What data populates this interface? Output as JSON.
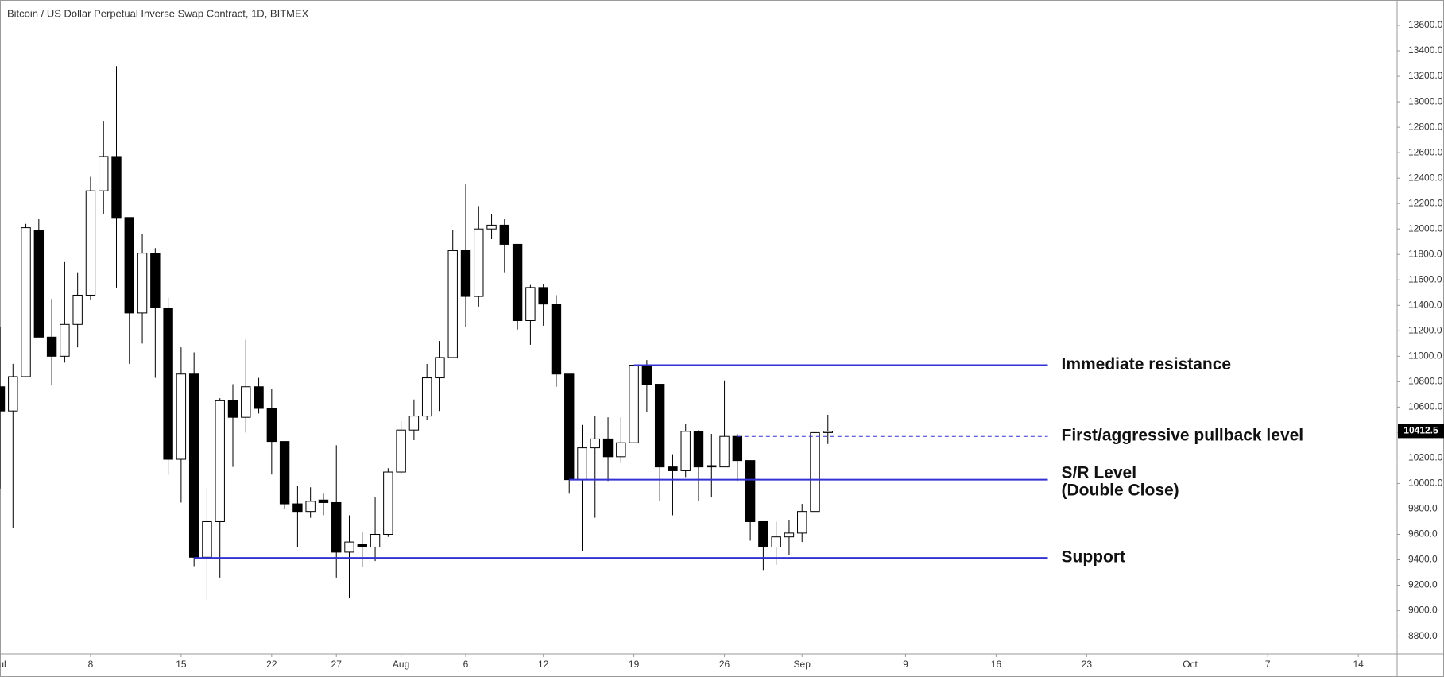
{
  "chart_data": {
    "type": "candlestick",
    "title": "Bitcoin / US Dollar Perpetual Inverse Swap Contract, 1D, BITMEX",
    "x": [
      "07-01",
      "07-02",
      "07-03",
      "07-04",
      "07-05",
      "07-06",
      "07-07",
      "07-08",
      "07-09",
      "07-10",
      "07-11",
      "07-12",
      "07-13",
      "07-14",
      "07-15",
      "07-16",
      "07-17",
      "07-18",
      "07-19",
      "07-20",
      "07-21",
      "07-22",
      "07-23",
      "07-24",
      "07-25",
      "07-26",
      "07-27",
      "07-28",
      "07-29",
      "07-30",
      "07-31",
      "08-01",
      "08-02",
      "08-03",
      "08-04",
      "08-05",
      "08-06",
      "08-07",
      "08-08",
      "08-09",
      "08-10",
      "08-11",
      "08-12",
      "08-13",
      "08-14",
      "08-15",
      "08-16",
      "08-17",
      "08-18",
      "08-19",
      "08-20",
      "08-21",
      "08-22",
      "08-23",
      "08-24",
      "08-25",
      "08-26",
      "08-27",
      "08-28",
      "08-29",
      "08-30",
      "08-31",
      "09-01",
      "09-02",
      "09-03"
    ],
    "open": [
      10760,
      10570,
      10840,
      11990,
      11150,
      11000,
      11250,
      11480,
      12300,
      12570,
      12090,
      11340,
      11810,
      11380,
      10190,
      10860,
      9420,
      9700,
      10650,
      10520,
      10760,
      10590,
      10330,
      9840,
      9780,
      9870,
      9850,
      9460,
      9520,
      9500,
      9600,
      10090,
      10420,
      10530,
      10830,
      10990,
      11830,
      11470,
      12000,
      12030,
      11880,
      11280,
      11540,
      11410,
      10860,
      10030,
      10280,
      10350,
      10210,
      10320,
      10930,
      10780,
      10130,
      10100,
      10410,
      10140,
      10130,
      10370,
      10180,
      9700,
      9500,
      9580,
      9610,
      9780,
      10400
    ],
    "high": [
      11230,
      10940,
      12040,
      12080,
      11450,
      11740,
      11660,
      12410,
      12850,
      13280,
      12090,
      11960,
      11850,
      11460,
      11070,
      11030,
      9970,
      10670,
      10780,
      11130,
      10830,
      10740,
      10330,
      9980,
      9970,
      9920,
      10300,
      9750,
      9620,
      9890,
      10120,
      10490,
      10660,
      10940,
      11120,
      11990,
      12350,
      12180,
      12120,
      12080,
      11880,
      11560,
      11570,
      11480,
      10860,
      10460,
      10530,
      10520,
      10520,
      10930,
      10970,
      10780,
      10230,
      10470,
      10420,
      10390,
      10810,
      10390,
      10180,
      9700,
      9700,
      9710,
      9840,
      10510,
      10540
    ],
    "low": [
      9960,
      9650,
      10840,
      11150,
      10770,
      10950,
      11070,
      11440,
      12120,
      11540,
      10940,
      11100,
      10830,
      10070,
      9850,
      9350,
      9080,
      9260,
      10130,
      10400,
      10550,
      10070,
      9800,
      9500,
      9730,
      9750,
      9260,
      9100,
      9340,
      9390,
      9580,
      10070,
      10340,
      10500,
      10570,
      10990,
      11230,
      11390,
      11920,
      11660,
      11210,
      11090,
      11240,
      10760,
      9920,
      9470,
      9730,
      10020,
      10160,
      10320,
      10560,
      9860,
      9750,
      10050,
      9860,
      9890,
      10130,
      10020,
      9550,
      9320,
      9360,
      9440,
      9540,
      9760,
      10310
    ],
    "close": [
      10570,
      10840,
      12010,
      11150,
      11000,
      11250,
      11480,
      12300,
      12570,
      12090,
      11340,
      11810,
      11380,
      10190,
      10860,
      9420,
      9700,
      10650,
      10520,
      10760,
      10590,
      10330,
      9840,
      9780,
      9860,
      9850,
      9460,
      9540,
      9500,
      9600,
      10090,
      10420,
      10530,
      10830,
      10990,
      11830,
      11470,
      12000,
      12030,
      11880,
      11280,
      11540,
      11410,
      10860,
      10030,
      10280,
      10350,
      10210,
      10320,
      10930,
      10780,
      10130,
      10100,
      10410,
      10130,
      10130,
      10370,
      10180,
      9700,
      9500,
      9580,
      9610,
      9780,
      10400,
      10410
    ],
    "up_color": "#ffffff",
    "down_color": "#000000",
    "ylim": [
      8660,
      13800
    ],
    "yticks": [
      {
        "value": 8800,
        "label": "8800.0"
      },
      {
        "value": 9000,
        "label": "9000.0"
      },
      {
        "value": 9200,
        "label": "9200.0"
      },
      {
        "value": 9400,
        "label": "9400.0"
      },
      {
        "value": 9600,
        "label": "9600.0"
      },
      {
        "value": 9800,
        "label": "9800.0"
      },
      {
        "value": 10000,
        "label": "10000.0"
      },
      {
        "value": 10200,
        "label": "10200.0"
      },
      {
        "value": 10400,
        "label": "10400.0"
      },
      {
        "value": 10600,
        "label": "10600.0"
      },
      {
        "value": 10800,
        "label": "10800.0"
      },
      {
        "value": 11000,
        "label": "11000.0"
      },
      {
        "value": 11200,
        "label": "11200.0"
      },
      {
        "value": 11400,
        "label": "11400.0"
      },
      {
        "value": 11600,
        "label": "11600.0"
      },
      {
        "value": 11800,
        "label": "11800.0"
      },
      {
        "value": 12000,
        "label": "12000.0"
      },
      {
        "value": 12200,
        "label": "12200.0"
      },
      {
        "value": 12400,
        "label": "12400.0"
      },
      {
        "value": 12600,
        "label": "12600.0"
      },
      {
        "value": 12800,
        "label": "12800.0"
      },
      {
        "value": 13000,
        "label": "13000.0"
      },
      {
        "value": 13200,
        "label": "13200.0"
      },
      {
        "value": 13400,
        "label": "13400.0"
      },
      {
        "value": 13600,
        "label": "13600.0"
      }
    ],
    "xlim": [
      "07-01",
      "10-17"
    ],
    "xticks": [
      {
        "value": "07-01",
        "label": "Jul"
      },
      {
        "value": "07-08",
        "label": "8"
      },
      {
        "value": "07-15",
        "label": "15"
      },
      {
        "value": "07-22",
        "label": "22"
      },
      {
        "value": "07-27",
        "label": "27"
      },
      {
        "value": "08-01",
        "label": "Aug"
      },
      {
        "value": "08-06",
        "label": "6"
      },
      {
        "value": "08-12",
        "label": "12"
      },
      {
        "value": "08-19",
        "label": "19"
      },
      {
        "value": "08-26",
        "label": "26"
      },
      {
        "value": "09-01",
        "label": "Sep"
      },
      {
        "value": "09-09",
        "label": "9"
      },
      {
        "value": "09-16",
        "label": "16"
      },
      {
        "value": "09-23",
        "label": "23"
      },
      {
        "value": "10-01",
        "label": "Oct"
      },
      {
        "value": "10-07",
        "label": "7"
      },
      {
        "value": "10-14",
        "label": "14"
      }
    ],
    "price_label": 10412.5,
    "annotations": [
      {
        "text": [
          "Immediate resistance"
        ],
        "value": 10930,
        "x_start": "08-19",
        "x_end": "09-20",
        "style": "solid",
        "color": "#3232d4"
      },
      {
        "text": [
          "First/aggressive pullback level"
        ],
        "value": 10370,
        "x_start": "08-27",
        "x_end": "09-20",
        "style": "dashed",
        "color": "#3232d4"
      },
      {
        "text": [
          "S/R Level",
          "(Double Close)"
        ],
        "value": 10030,
        "x_start": "08-14",
        "x_end": "09-20",
        "style": "solid",
        "color": "#3232d4"
      },
      {
        "text": [
          "Support"
        ],
        "value": 9415,
        "x_start": "07-16",
        "x_end": "09-20",
        "style": "solid",
        "color": "#3232d4"
      }
    ]
  }
}
